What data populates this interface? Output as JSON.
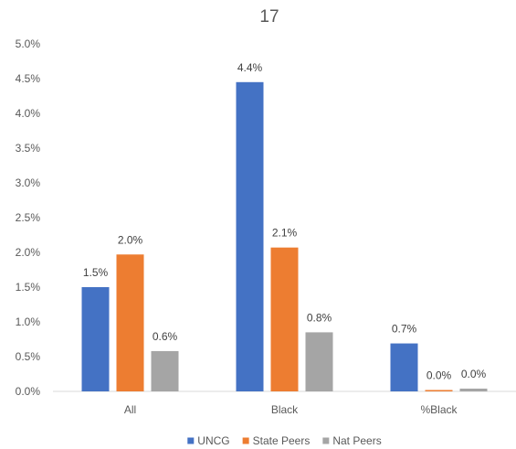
{
  "chart_data": {
    "type": "bar",
    "title": "17",
    "categories": [
      "All",
      "Black",
      "%Black"
    ],
    "series": [
      {
        "name": "UNCG",
        "values": [
          0.015,
          0.0445,
          0.0069
        ],
        "labels": [
          "1.5%",
          "4.4%",
          "0.7%"
        ],
        "color": "#4472C4"
      },
      {
        "name": "State Peers",
        "values": [
          0.0197,
          0.0207,
          0.0002
        ],
        "labels": [
          "2.0%",
          "2.1%",
          "0.0%"
        ],
        "color": "#ED7D31"
      },
      {
        "name": "Nat Peers",
        "values": [
          0.0058,
          0.0085,
          0.0004
        ],
        "labels": [
          "0.6%",
          "0.8%",
          "0.0%"
        ],
        "color": "#A5A5A5"
      }
    ],
    "yticks": [
      "0.0%",
      "0.5%",
      "1.0%",
      "1.5%",
      "2.0%",
      "2.5%",
      "3.0%",
      "3.5%",
      "4.0%",
      "4.5%",
      "5.0%"
    ],
    "ylim": [
      0,
      0.05
    ],
    "grid": false,
    "legend_position": "bottom"
  }
}
